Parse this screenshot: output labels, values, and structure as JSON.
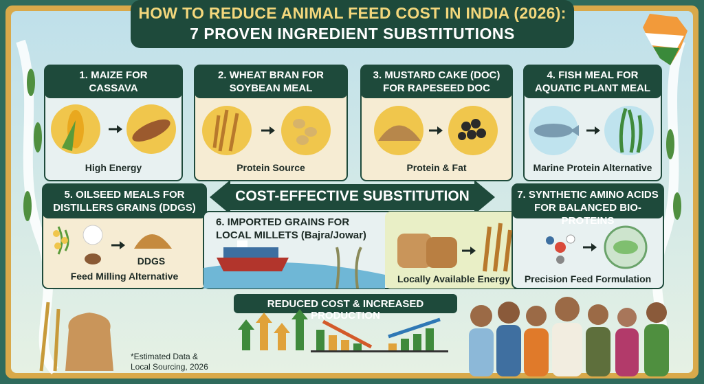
{
  "header": {
    "title_lines": [
      "HOW TO REDUCE ANIMAL FEED COST IN INDIA (2026):",
      "7 PROVEN INGREDIENT SUBSTITUTIONS"
    ]
  },
  "banner": "COST-EFFECTIVE SUBSTITUTION",
  "cards": [
    {
      "title_lines": [
        "1. MAIZE FOR",
        "CASSAVA"
      ],
      "caption": "High Energy"
    },
    {
      "title_lines": [
        "2. WHEAT BRAN FOR",
        "SOYBEAN MEAL"
      ],
      "caption": "Protein Source"
    },
    {
      "title_lines": [
        "3. MUSTARD CAKE (DOC)",
        "FOR RAPESEED DOC"
      ],
      "caption": "Protein & Fat"
    },
    {
      "title_lines": [
        "4. FISH MEAL FOR",
        "AQUATIC PLANT MEAL"
      ],
      "caption": "Marine Protein Alternative"
    },
    {
      "title_lines": [
        "5. OILSEED MEALS FOR",
        "DISTILLERS GRAINS (DDGS)"
      ],
      "caption": "Feed Milling Alternative",
      "item_label": "DDGS"
    },
    {
      "title_lines": [
        "6. IMPORTED GRAINS FOR",
        "LOCAL MILLETS (Bajra/Jowar)"
      ],
      "caption": "Locally Available Energy"
    },
    {
      "title_lines": [
        "7. SYNTHETIC AMINO ACIDS",
        "FOR BALANCED BIO-PROTEINS"
      ],
      "caption": "Precision Feed Formulation"
    }
  ],
  "bottom": {
    "label": "REDUCED COST & INCREASED PRODUCTION"
  },
  "footnote_lines": [
    "*Estimated Data &",
    "Local Sourcing, 2026"
  ]
}
